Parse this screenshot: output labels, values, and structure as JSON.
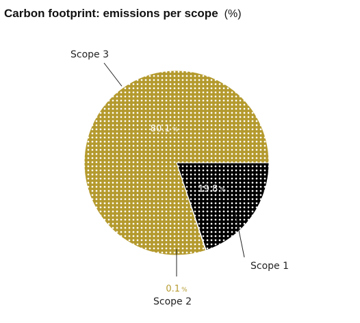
{
  "chart_data": {
    "type": "pie",
    "title_main": "Carbon footprint: emissions per scope",
    "title_unit": "(%)",
    "slices": [
      {
        "label": "Scope 1",
        "value": 19.8,
        "value_text": "19.8",
        "color": "#000000"
      },
      {
        "label": "Scope 2",
        "value": 0.1,
        "value_text": "0.1",
        "color": "#b49a2e"
      },
      {
        "label": "Scope 3",
        "value": 80.1,
        "value_text": "80.1",
        "color": "#b49a2e"
      }
    ],
    "percent_sign": "%"
  }
}
